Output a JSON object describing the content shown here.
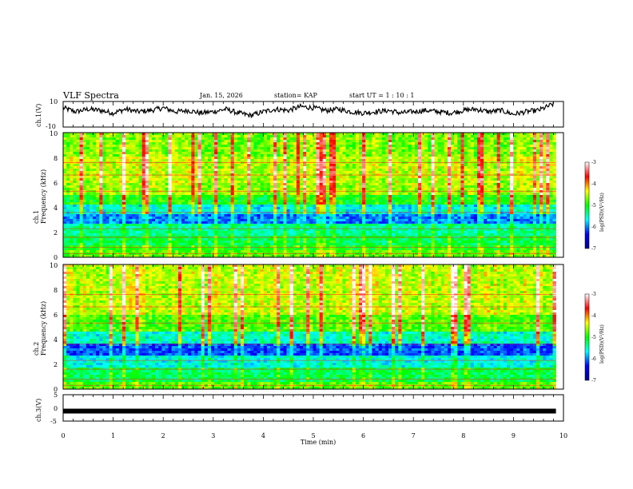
{
  "header": {
    "title": "VLF Spectra",
    "date": "Jan. 15, 2026",
    "station": "station= KAP",
    "start": "start  UT =  1 : 10 : 1"
  },
  "colors": {
    "low": "#00008b",
    "mid_low": "#0000ff",
    "mid": "#00ff00",
    "mid_high": "#ffff00",
    "high": "#ff0000",
    "top": "#ffffff"
  },
  "chart_data": [
    {
      "id": "waveform_ch1",
      "type": "line",
      "ylabel": "ch.1(V)",
      "ylim": [
        -10,
        10
      ],
      "yticks": [
        "10",
        "-10"
      ],
      "xlim": [
        0,
        10
      ],
      "x": [
        0,
        0.25,
        0.5,
        0.75,
        1.0,
        1.25,
        1.5,
        1.75,
        2.0,
        2.25,
        2.5,
        2.75,
        3.0,
        3.25,
        3.5,
        3.75,
        4.0,
        4.25,
        4.5,
        4.75,
        5.0,
        5.25,
        5.5,
        5.75,
        6.0,
        6.25,
        6.5,
        6.75,
        7.0,
        7.25,
        7.5,
        7.75,
        8.0,
        8.25,
        8.5,
        8.75,
        9.0,
        9.25,
        9.5,
        9.8
      ],
      "y": [
        5,
        2,
        4,
        3,
        1,
        4,
        2,
        3,
        5,
        2,
        3,
        1,
        2,
        4,
        1,
        -1,
        2,
        4,
        3,
        6,
        5,
        3,
        4,
        2,
        1,
        2,
        3,
        1,
        2,
        3,
        2,
        1,
        3,
        4,
        2,
        3,
        0,
        2,
        3,
        8
      ]
    },
    {
      "id": "spectrogram_ch1",
      "type": "heatmap",
      "ylabel": "ch.1\nFrequency (kHz)",
      "ylim": [
        0,
        10
      ],
      "yticks": [
        "0",
        "2",
        "4",
        "6",
        "8",
        "10"
      ],
      "xlim": [
        0,
        9.85
      ],
      "colorbar": {
        "label": "log(PSD)(V²/Hz)",
        "range": [
          -7,
          -3
        ],
        "ticks": [
          "-3",
          "-4",
          "-5",
          "-6",
          "-7"
        ]
      },
      "band_profile": [
        {
          "from": 0,
          "to": 0.5,
          "level": 0.55
        },
        {
          "from": 0.5,
          "to": 1.0,
          "level": 0.5
        },
        {
          "from": 1.0,
          "to": 1.8,
          "level": 0.45
        },
        {
          "from": 1.8,
          "to": 2.6,
          "level": 0.4
        },
        {
          "from": 2.6,
          "to": 3.4,
          "level": 0.25
        },
        {
          "from": 3.4,
          "to": 4.2,
          "level": 0.35
        },
        {
          "from": 4.2,
          "to": 5.0,
          "level": 0.5
        },
        {
          "from": 5.0,
          "to": 6.0,
          "level": 0.6
        },
        {
          "from": 6.0,
          "to": 8.0,
          "level": 0.62
        },
        {
          "from": 8.0,
          "to": 10.0,
          "level": 0.58
        }
      ]
    },
    {
      "id": "spectrogram_ch2",
      "type": "heatmap",
      "ylabel": "ch.2\nFrequency (kHz)",
      "ylim": [
        0,
        10
      ],
      "yticks": [
        "0",
        "2",
        "4",
        "6",
        "8",
        "10"
      ],
      "xlim": [
        0,
        9.85
      ],
      "colorbar": {
        "label": "log(PSD)(V²/Hz)",
        "range": [
          -7,
          -3
        ],
        "ticks": [
          "-3",
          "-4",
          "-5",
          "-6",
          "-7"
        ]
      },
      "band_profile": [
        {
          "from": 0,
          "to": 0.5,
          "level": 0.55
        },
        {
          "from": 0.5,
          "to": 1.8,
          "level": 0.45
        },
        {
          "from": 1.8,
          "to": 2.6,
          "level": 0.35
        },
        {
          "from": 2.6,
          "to": 3.6,
          "level": 0.22
        },
        {
          "from": 3.6,
          "to": 4.6,
          "level": 0.38
        },
        {
          "from": 4.6,
          "to": 6.0,
          "level": 0.55
        },
        {
          "from": 6.0,
          "to": 10.0,
          "level": 0.63
        }
      ]
    },
    {
      "id": "waveform_ch3",
      "type": "line",
      "ylabel": "ch.3(V)",
      "ylim": [
        -5,
        5
      ],
      "yticks": [
        "5",
        "0",
        "-5"
      ],
      "xlim": [
        0,
        10
      ],
      "x": [
        0,
        9.85
      ],
      "y": [
        -1.2,
        -1.2
      ]
    }
  ],
  "xaxis": {
    "label": "Time (min)",
    "ticks": [
      "0",
      "1",
      "2",
      "3",
      "4",
      "5",
      "6",
      "7",
      "8",
      "9",
      "10"
    ]
  }
}
